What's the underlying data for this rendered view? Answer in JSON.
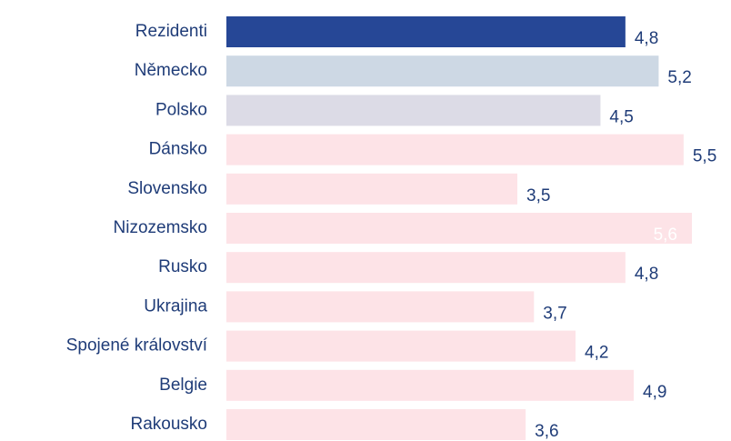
{
  "chart_data": {
    "type": "bar",
    "orientation": "horizontal",
    "categories": [
      "Rezidenti",
      "Německo",
      "Polsko",
      "Dánsko",
      "Slovensko",
      "Nizozemsko",
      "Rusko",
      "Ukrajina",
      "Spojené království",
      "Belgie",
      "Rakousko"
    ],
    "values": [
      4.8,
      5.2,
      4.5,
      5.5,
      3.5,
      5.6,
      4.8,
      3.7,
      4.2,
      4.9,
      3.6
    ],
    "value_labels": [
      "4,8",
      "5,2",
      "4,5",
      "5,5",
      "3,5",
      "5,6",
      "4,8",
      "3,7",
      "4,2",
      "4,9",
      "3,6"
    ],
    "colors": [
      "#264796",
      "#cdd8e4",
      "#dcdbe6",
      "#fde3e7",
      "#fde3e7",
      "#fde3e7",
      "#fde3e7",
      "#fde3e7",
      "#fde3e7",
      "#fde3e7",
      "#fde3e7"
    ],
    "value_label_inside": [
      false,
      false,
      false,
      false,
      false,
      true,
      false,
      false,
      false,
      false,
      false
    ]
  }
}
